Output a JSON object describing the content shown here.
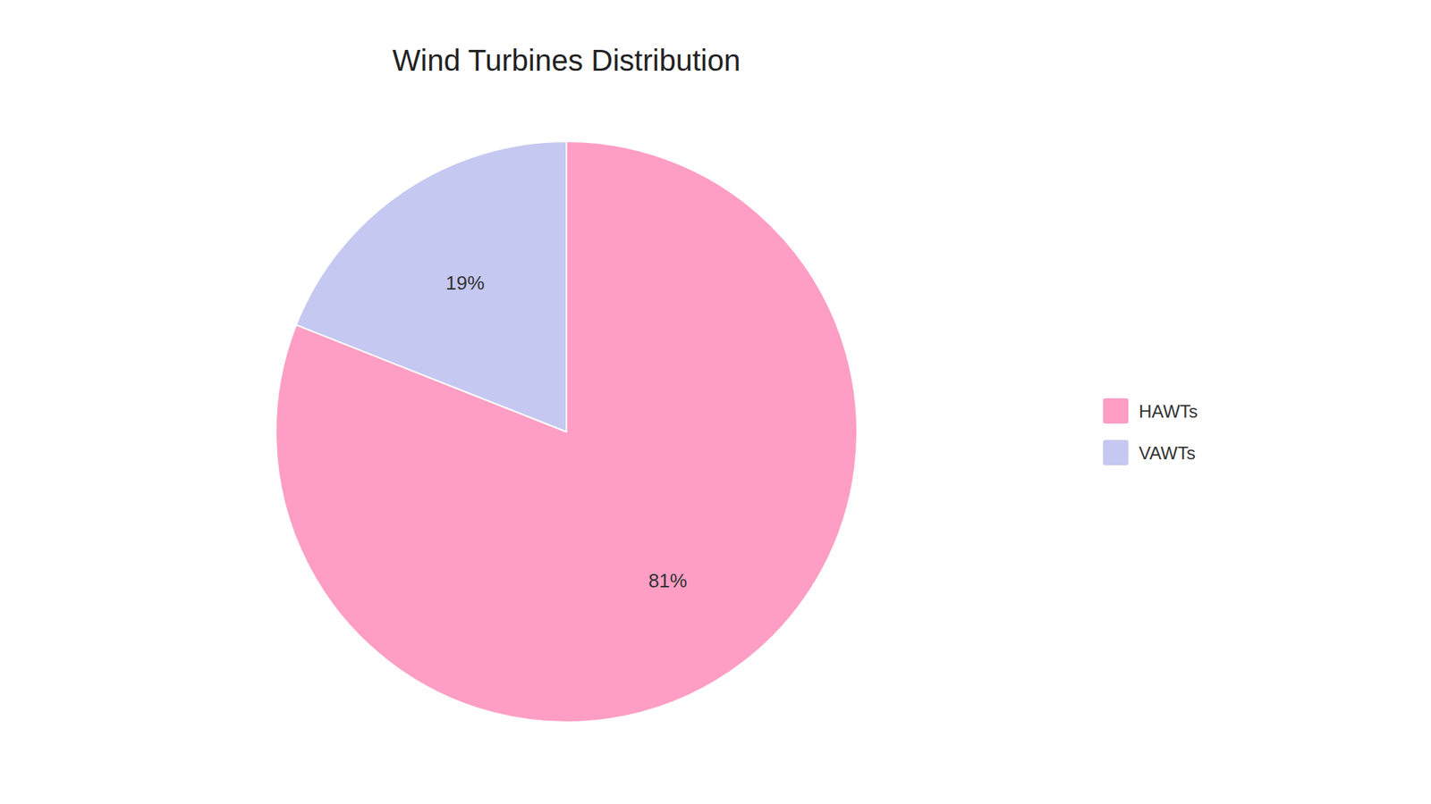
{
  "chart_data": {
    "type": "pie",
    "title": "Wind Turbines Distribution",
    "categories": [
      "HAWTs",
      "VAWTs"
    ],
    "values": [
      81,
      19
    ],
    "value_labels": [
      "81%",
      "19%"
    ],
    "colors": [
      "#FF9EC4",
      "#C5C8F0"
    ],
    "data_labels": true,
    "legend": "right"
  }
}
